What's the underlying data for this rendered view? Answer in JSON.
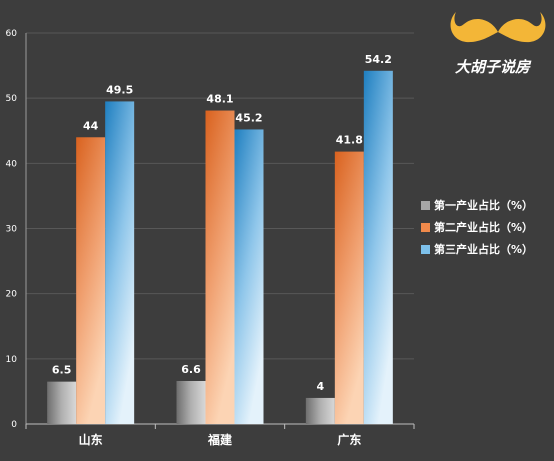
{
  "logo": {
    "text": "大胡子说房"
  },
  "chart_data": {
    "type": "bar",
    "categories": [
      "山东",
      "福建",
      "广东"
    ],
    "series": [
      {
        "name": "第一产业占比（%）",
        "values": [
          6.5,
          6.6,
          4
        ],
        "color": "#8a8a8a"
      },
      {
        "name": "第二产业占比（%）",
        "values": [
          44,
          48.1,
          41.8
        ],
        "color": "#e0692a"
      },
      {
        "name": "第三产业占比（%）",
        "values": [
          49.5,
          45.2,
          54.2
        ],
        "color": "#2e8fc9"
      }
    ],
    "yticks": [
      "0",
      "10",
      "20",
      "30",
      "40",
      "50",
      "60"
    ],
    "ylim": [
      0,
      60
    ],
    "grid": true,
    "legend_position": "right"
  }
}
